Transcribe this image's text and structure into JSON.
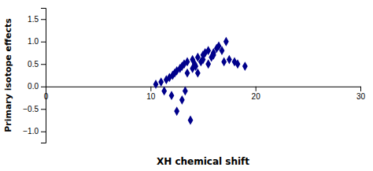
{
  "chart_data": {
    "type": "scatter",
    "x": [
      10.5,
      11.0,
      11.3,
      11.5,
      11.8,
      12.0,
      12.1,
      12.3,
      12.5,
      12.5,
      12.8,
      13.0,
      13.0,
      13.2,
      13.3,
      13.5,
      13.5,
      13.8,
      14.0,
      14.0,
      14.2,
      14.3,
      14.5,
      14.5,
      14.8,
      15.0,
      15.0,
      15.2,
      15.5,
      15.5,
      15.8,
      16.0,
      16.0,
      16.3,
      16.5,
      16.8,
      17.0,
      17.2,
      17.5,
      18.0,
      18.3,
      19.0
    ],
    "y": [
      0.05,
      0.1,
      -0.1,
      0.15,
      0.2,
      -0.2,
      0.25,
      0.3,
      0.35,
      -0.55,
      0.4,
      -0.3,
      0.45,
      0.5,
      -0.1,
      0.3,
      0.55,
      -0.75,
      0.4,
      0.6,
      0.5,
      0.45,
      0.65,
      0.3,
      0.55,
      0.7,
      0.6,
      0.75,
      0.5,
      0.8,
      0.65,
      0.75,
      0.7,
      0.85,
      0.9,
      0.8,
      0.55,
      1.0,
      0.6,
      0.55,
      0.5,
      0.45
    ],
    "color": "#00008B",
    "marker": "diamond",
    "xlabel": "XH chemical shift",
    "ylabel": "Primary isotope effects",
    "xlim": [
      0,
      30
    ],
    "ylim": [
      -1.25,
      1.75
    ],
    "xticks": [
      0,
      10,
      20,
      30
    ],
    "yticks": [
      {
        "value": -1,
        "label": "−1.0"
      },
      {
        "value": -0.5,
        "label": "−0.5"
      },
      {
        "value": 0,
        "label": "0.0"
      },
      0.5,
      {
        "value": 1,
        "label": "1.0"
      },
      1.5
    ]
  }
}
